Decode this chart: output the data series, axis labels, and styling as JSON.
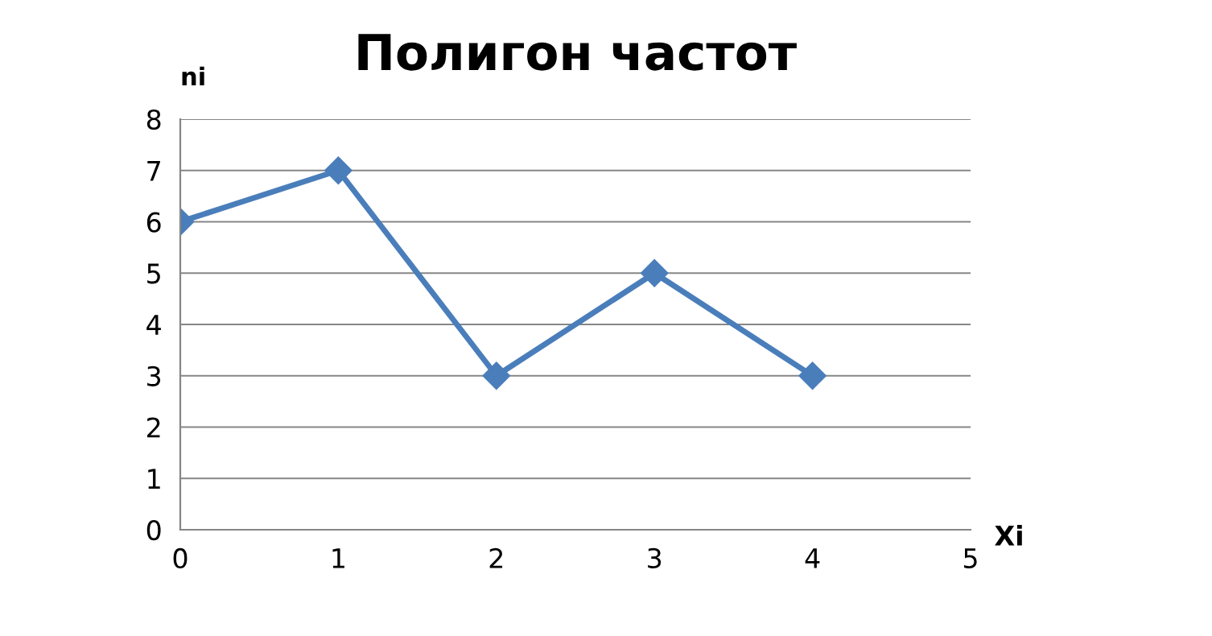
{
  "chart_data": {
    "type": "line",
    "title": "Полигон частот",
    "xlabel": "Xi",
    "ylabel": "ni",
    "x": [
      0,
      1,
      2,
      3,
      4
    ],
    "series": [
      {
        "color": "#4a7ebb",
        "values": [
          6,
          7,
          3,
          5,
          3
        ]
      }
    ],
    "xlim": [
      0,
      5
    ],
    "xticks": [
      0,
      1,
      2,
      3,
      4,
      5
    ],
    "ylim": [
      0,
      8
    ],
    "yticks": [
      0,
      1,
      2,
      3,
      4,
      5,
      6,
      7,
      8
    ],
    "grid": "y",
    "marker": "diamond",
    "line_style": "solid",
    "legend": false
  }
}
